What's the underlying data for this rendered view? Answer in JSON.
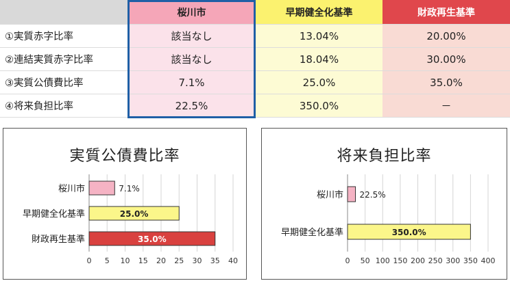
{
  "table": {
    "header": {
      "label": "",
      "city": "桜川市",
      "early": "早期健全化基準",
      "fin": "財政再生基準"
    },
    "rows": [
      {
        "label": "①実質赤字比率",
        "city": "該当なし",
        "early": "13.04%",
        "fin": "20.00%"
      },
      {
        "label": "②連結実質赤字比率",
        "city": "該当なし",
        "early": "18.04%",
        "fin": "30.00%"
      },
      {
        "label": "③実質公債費比率",
        "city": "7.1%",
        "early": "25.0%",
        "fin": "35.0%"
      },
      {
        "label": "④将来負担比率",
        "city": "22.5%",
        "early": "350.0%",
        "fin": "－"
      }
    ],
    "colors": {
      "city_header": "#f5a6b8",
      "early_header": "#fbf26f",
      "fin_header": "#e0474c",
      "city_highlight_border": "#1f5fa6"
    }
  },
  "chart_data": [
    {
      "type": "bar",
      "orientation": "horizontal",
      "title": "実質公債費比率",
      "categories": [
        "桜川市",
        "早期健全化基準",
        "財政再生基準"
      ],
      "values": [
        7.1,
        25.0,
        35.0
      ],
      "data_labels": [
        "7.1%",
        "25.0%",
        "35.0%"
      ],
      "colors": [
        "#f5b3c4",
        "#fbf68a",
        "#d9413f"
      ],
      "label_colors": [
        "#222222",
        "#222222",
        "#ffffff"
      ],
      "xlim": [
        0,
        40
      ],
      "xticks": [
        "0",
        "5",
        "10",
        "15",
        "20",
        "25",
        "30",
        "35",
        "40"
      ],
      "xlabel": "",
      "ylabel": "",
      "grid": "vertical"
    },
    {
      "type": "bar",
      "orientation": "horizontal",
      "title": "将来負担比率",
      "categories": [
        "桜川市",
        "早期健全化基準"
      ],
      "values": [
        22.5,
        350.0
      ],
      "data_labels": [
        "22.5%",
        "350.0%"
      ],
      "colors": [
        "#f5b3c4",
        "#fbf68a"
      ],
      "label_colors": [
        "#222222",
        "#222222"
      ],
      "xlim": [
        0,
        400
      ],
      "xticks": [
        "0",
        "50",
        "100",
        "150",
        "200",
        "250",
        "300",
        "350",
        "400"
      ],
      "xlabel": "",
      "ylabel": "",
      "grid": "vertical"
    }
  ]
}
